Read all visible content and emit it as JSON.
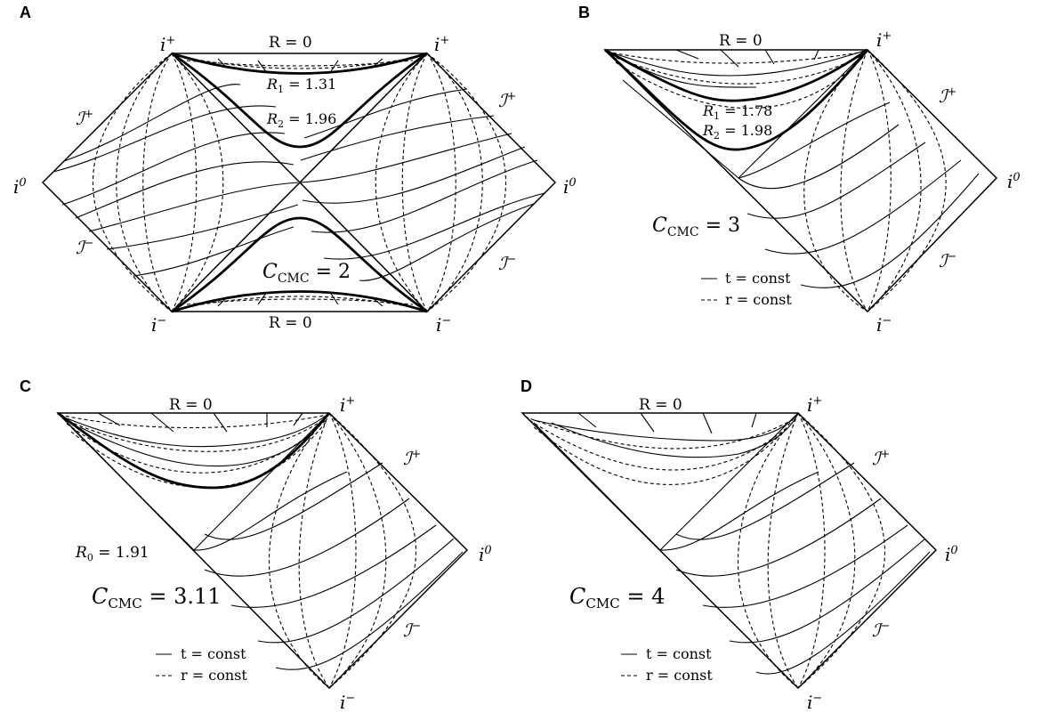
{
  "panels": [
    {
      "letter": "A",
      "r0_top": "R = 0",
      "r0_bottom": "R = 0",
      "i_plus": "i",
      "i_plus_sup": "+",
      "i_minus": "i",
      "i_minus_sup": "−",
      "i_zero": "i",
      "i_zero_sup": "0",
      "scri_plus": "ℐ",
      "scri_minus": "ℐ",
      "r1": "R",
      "r1_sub": "1",
      "r1_val": " = 1.31",
      "r2": "R",
      "r2_sub": "2",
      "r2_val": " = 1.96",
      "c": "C",
      "c_sub": "CMC",
      "c_val": " = 2"
    },
    {
      "letter": "B",
      "r0_top": "R = 0",
      "r1": "R",
      "r1_sub": "1",
      "r1_val": " = 1.78",
      "r2": "R",
      "r2_sub": "2",
      "r2_val": " = 1.98",
      "c": "C",
      "c_sub": "CMC",
      "c_val": " = 3",
      "legend_t": "t = const",
      "legend_r": "r = const"
    },
    {
      "letter": "C",
      "r0_top": "R = 0",
      "r0": "R",
      "r0_sub": "0",
      "r0_val": " = 1.91",
      "c": "C",
      "c_sub": "CMC",
      "c_val": " = 3.11",
      "legend_t": "t = const",
      "legend_r": "r = const"
    },
    {
      "letter": "D",
      "r0_top": "R = 0",
      "c": "C",
      "c_sub": "CMC",
      "c_val": " = 4",
      "legend_t": "t = const",
      "legend_r": "r = const"
    }
  ]
}
